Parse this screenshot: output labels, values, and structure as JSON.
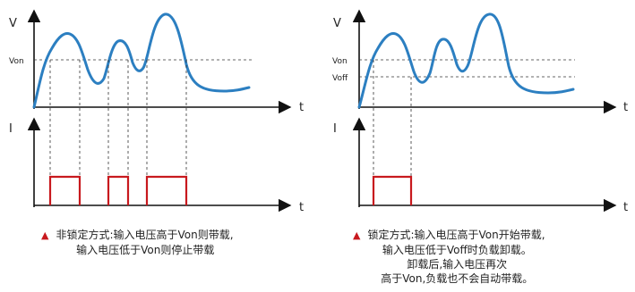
{
  "left_panel": {
    "voltage_axis_label": "V",
    "current_axis_label": "I",
    "time_label_top": "t",
    "time_label_bottom": "t",
    "von_label": "Von",
    "caption": {
      "line1": "非锁定方式:输入电压高于Von则带载,",
      "line2": "输入电压低于Von则停止带载"
    }
  },
  "right_panel": {
    "voltage_axis_label": "V",
    "current_axis_label": "I",
    "time_label_top": "t",
    "time_label_bottom": "t",
    "von_label": "Von",
    "voff_label": "Voff",
    "caption": {
      "line1": "锁定方式:输入电压高于Von开始带载,",
      "line2": "输入电压低于Voff时负载卸载。",
      "line3": "卸载后,输入电压再次",
      "line4": "高于Von,负载也不会自动带载。"
    }
  },
  "colors": {
    "voltage_curve": "#2c7fc1",
    "current_pulse": "#c8191e",
    "marker": "#c8191e",
    "axis": "#111111"
  }
}
